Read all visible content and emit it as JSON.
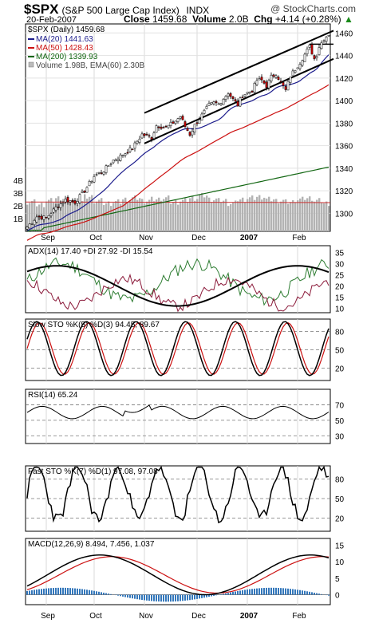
{
  "header": {
    "symbol": "$SPX",
    "name": "(S&P 500 Large Cap Index)",
    "exchange": "INDX",
    "source": "@ StockCharts.com",
    "date": "20-Feb-2007",
    "close_label": "Close",
    "close_value": "1459.68",
    "volume_label": "Volume",
    "volume_value": "2.0B",
    "chg_label": "Chg",
    "chg_value": "+4.14 (+0.28%)",
    "chg_arrow": "up-arrow"
  },
  "colors": {
    "price": "#000000",
    "ma20": "#1c1c8c",
    "ma50": "#cc1111",
    "ma200": "#116611",
    "up_candle": "#ffffff",
    "down_candle": "#cc0000",
    "volume": "#b3b3b3",
    "volume_ema": "#cc3333",
    "adx": "#000000",
    "plus_di": "#2e7d32",
    "minus_di": "#8b1a3a",
    "sto_k": "#000000",
    "sto_d": "#cc1111",
    "rsi": "#000000",
    "rsi_fill": "#66aa66",
    "macd": "#000000",
    "macd_signal": "#cc1111",
    "macd_hist": "#3377bb"
  },
  "chart_data": [
    {
      "type": "candlestick",
      "title": "$SPX (Daily) 1459.68",
      "legend": [
        {
          "label": "MA(20) 1441.63",
          "color": "#1c1c8c",
          "marker": "line"
        },
        {
          "label": "MA(50) 1428.43",
          "color": "#cc1111",
          "marker": "line"
        },
        {
          "label": "MA(200) 1339.93",
          "color": "#116611",
          "marker": "line"
        },
        {
          "label": "Volume 1.98B, EMA(60) 2.30B",
          "color": "#999999",
          "marker": "box"
        }
      ],
      "x_labels": [
        "Sep",
        "Oct",
        "Nov",
        "Dec",
        "2007",
        "Feb"
      ],
      "y_ticks": [
        1300,
        1320,
        1340,
        1360,
        1380,
        1400,
        1420,
        1440,
        1460
      ],
      "ylim": [
        1284,
        1468
      ],
      "price_path": [
        [
          0,
          1288
        ],
        [
          4,
          1297
        ],
        [
          8,
          1296
        ],
        [
          12,
          1305
        ],
        [
          16,
          1312
        ],
        [
          20,
          1310
        ],
        [
          24,
          1320
        ],
        [
          28,
          1333
        ],
        [
          32,
          1338
        ],
        [
          36,
          1347
        ],
        [
          40,
          1352
        ],
        [
          44,
          1358
        ],
        [
          48,
          1370
        ],
        [
          52,
          1367
        ],
        [
          54,
          1378
        ],
        [
          58,
          1376
        ],
        [
          62,
          1382
        ],
        [
          64,
          1386
        ],
        [
          66,
          1377
        ],
        [
          68,
          1370
        ],
        [
          70,
          1378
        ],
        [
          72,
          1384
        ],
        [
          76,
          1396
        ],
        [
          78,
          1398
        ],
        [
          80,
          1397
        ],
        [
          84,
          1407
        ],
        [
          86,
          1401
        ],
        [
          88,
          1396
        ],
        [
          90,
          1405
        ],
        [
          94,
          1409
        ],
        [
          96,
          1418
        ],
        [
          98,
          1418
        ],
        [
          100,
          1413
        ],
        [
          102,
          1421
        ],
        [
          104,
          1424
        ],
        [
          106,
          1416
        ],
        [
          108,
          1409
        ],
        [
          110,
          1422
        ],
        [
          112,
          1428
        ],
        [
          114,
          1434
        ],
        [
          116,
          1441
        ],
        [
          118,
          1448
        ],
        [
          120,
          1437
        ],
        [
          121,
          1441
        ],
        [
          122,
          1448
        ],
        [
          124,
          1455
        ],
        [
          126,
          1459
        ]
      ],
      "volume_bn": [
        2.3,
        2.1,
        2.4,
        2.6,
        2.5,
        2.3,
        2.7,
        2.4,
        2.2,
        2.3,
        2.5,
        2.6,
        2.4,
        2.5,
        2.6,
        2.3,
        2.4,
        2.6,
        2.8,
        2.5,
        2.4,
        2.2,
        2.5,
        2.6,
        2.7,
        2.5,
        2.4,
        2.3,
        2.5,
        2.6,
        2.4,
        2.2,
        2.0
      ],
      "volume_ticks": [
        "1B",
        "2B",
        "3B",
        "4B"
      ],
      "ma20": {
        "start": 1287,
        "end": 1448
      },
      "ma50": {
        "start": 1284,
        "end": 1432
      },
      "ma200": {
        "start": 1284,
        "end": 1341
      },
      "trend_channel": [
        {
          "from": [
            "Nov",
            1389
          ],
          "to": [
            "Feb-end",
            1462
          ]
        },
        {
          "from": [
            "Nov",
            1362
          ],
          "to": [
            "Feb-end",
            1437
          ]
        }
      ]
    },
    {
      "type": "line",
      "title": "ADX(14) 17.40 +DI 27.92 -DI 15.54",
      "series": [
        {
          "name": "ADX(14)",
          "value": 17.4
        },
        {
          "name": "+DI",
          "value": 27.92
        },
        {
          "name": "-DI",
          "value": 15.54
        }
      ],
      "y_ticks": [
        10,
        15,
        20,
        25,
        30,
        35
      ],
      "ylim": [
        8,
        38
      ]
    },
    {
      "type": "line",
      "title": "Slow STO %K(5) %D(3) 94.45, 89.67",
      "series": [
        {
          "name": "%K(5)",
          "value": 94.45
        },
        {
          "name": "%D(3)",
          "value": 89.67
        }
      ],
      "y_ticks": [
        20,
        50,
        80
      ],
      "ylim": [
        0,
        100
      ]
    },
    {
      "type": "area",
      "title": "RSI(14) 65.24",
      "series": [
        {
          "name": "RSI(14)",
          "value": 65.24
        }
      ],
      "y_ticks": [
        30,
        50,
        70
      ],
      "ylim": [
        20,
        90
      ]
    },
    {
      "type": "line",
      "title": "Fast STO %K(7) %D(1) 97.08, 97.08",
      "series": [
        {
          "name": "%K(7)",
          "value": 97.08
        },
        {
          "name": "%D(1)",
          "value": 97.08
        }
      ],
      "y_ticks": [
        20,
        50,
        80
      ],
      "ylim": [
        0,
        100
      ]
    },
    {
      "type": "line",
      "title": "MACD(12,26,9) 8.494, 7.456, 1.037",
      "series": [
        {
          "name": "MACD(12,26,9)",
          "value": 8.494
        },
        {
          "name": "Signal",
          "value": 7.456
        },
        {
          "name": "Histogram",
          "value": 1.037
        }
      ],
      "y_ticks": [
        0,
        5,
        10,
        15
      ],
      "ylim": [
        -3,
        17
      ]
    }
  ]
}
